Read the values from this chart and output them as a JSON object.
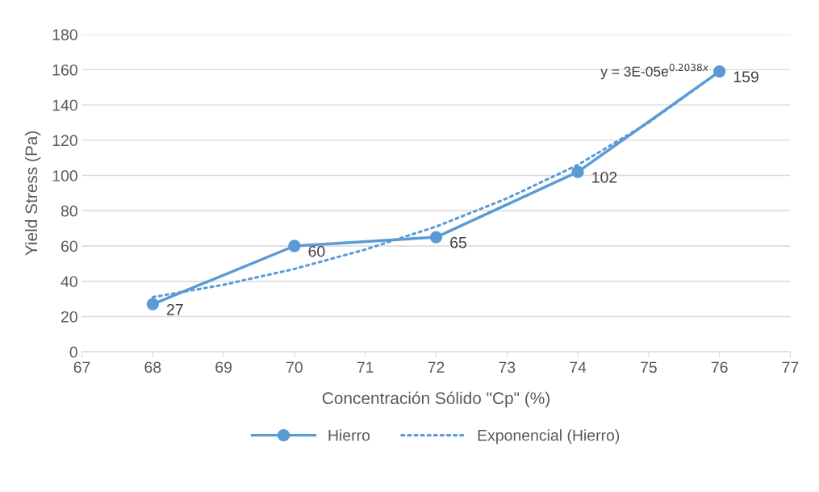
{
  "chart_data": {
    "type": "line",
    "xlabel": "Concentración Sólido \"Cp\" (%)",
    "ylabel": "Yield Stress (Pa)",
    "xlim": [
      67,
      77
    ],
    "xticks": [
      67,
      68,
      69,
      70,
      71,
      72,
      73,
      74,
      75,
      76,
      77
    ],
    "ylim": [
      0,
      180
    ],
    "yticks": [
      0,
      20,
      40,
      60,
      80,
      100,
      120,
      140,
      160,
      180
    ],
    "grid": "y",
    "legend": "bottom",
    "series": [
      {
        "name": "Hierro",
        "color": "#5b9bd5",
        "x": [
          68,
          70,
          72,
          74,
          76
        ],
        "values": [
          27,
          60,
          65,
          102,
          159
        ],
        "marker": "circle",
        "line_style": "solid",
        "data_labels": true
      },
      {
        "name": "Exponencial (Hierro)",
        "color": "#5b9bd5",
        "x": [
          68,
          69,
          70,
          71,
          72,
          73,
          74,
          75,
          76
        ],
        "values": [
          31,
          38,
          47,
          58,
          71,
          87,
          106,
          130,
          159
        ],
        "marker": "none",
        "line_style": "dotted"
      }
    ],
    "annotations": [
      "y = 3E-05e$^{0.2038x}$"
    ]
  }
}
